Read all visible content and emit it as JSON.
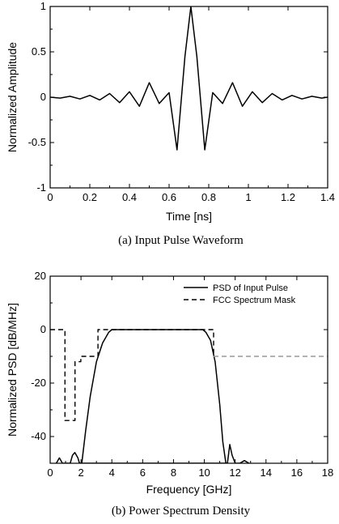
{
  "chart_data": [
    {
      "type": "line",
      "title": "",
      "caption": "(a) Input Pulse Waveform",
      "xlabel": "Time [ns]",
      "ylabel": "Normalized Amplitude",
      "xlim": [
        0,
        1.4
      ],
      "ylim": [
        -1,
        1
      ],
      "xticks": [
        "0",
        "0.2",
        "0.4",
        "0.6",
        "0.8",
        "1",
        "1.2",
        "1.4"
      ],
      "yticks": [
        "-1",
        "-0.5",
        "0",
        "0.5",
        "1"
      ],
      "grid": false,
      "series": [
        {
          "color": "#000000",
          "x": [
            0,
            0.05,
            0.1,
            0.15,
            0.2,
            0.25,
            0.3,
            0.35,
            0.4,
            0.45,
            0.5,
            0.55,
            0.6,
            0.64,
            0.68,
            0.71,
            0.74,
            0.78,
            0.82,
            0.87,
            0.92,
            0.97,
            1.02,
            1.07,
            1.12,
            1.17,
            1.22,
            1.27,
            1.32,
            1.37,
            1.4
          ],
          "y": [
            0,
            -0.01,
            0.01,
            -0.02,
            0.02,
            -0.03,
            0.04,
            -0.06,
            0.06,
            -0.1,
            0.16,
            -0.07,
            0.05,
            -0.58,
            0.45,
            1.0,
            0.45,
            -0.58,
            0.05,
            -0.07,
            0.16,
            -0.1,
            0.06,
            -0.06,
            0.04,
            -0.03,
            0.02,
            -0.02,
            0.01,
            -0.01,
            0
          ]
        }
      ]
    },
    {
      "type": "line",
      "title": "",
      "caption": "(b) Power Spectrum Density",
      "xlabel": "Frequency [GHz]",
      "ylabel": "Normalized PSD [dB/MHz]",
      "xlim": [
        0,
        18
      ],
      "ylim": [
        -50,
        20
      ],
      "xticks": [
        "0",
        "2",
        "4",
        "6",
        "8",
        "10",
        "12",
        "14",
        "16",
        "18"
      ],
      "yticks": [
        "-40",
        "-20",
        "0",
        "20"
      ],
      "grid": false,
      "legend_position": "top-right",
      "series": [
        {
          "name": "PSD of Input Pulse",
          "style": "solid",
          "color": "#000000",
          "x": [
            2.05,
            2.3,
            2.6,
            3.0,
            3.4,
            3.8,
            4.0,
            9.9,
            10.1,
            10.4,
            10.7,
            11.0,
            11.2,
            11.4,
            11.5
          ],
          "y": [
            -50,
            -38,
            -25,
            -12,
            -5,
            -1,
            0,
            0,
            -1,
            -4,
            -12,
            -28,
            -42,
            -50,
            -50
          ]
        },
        {
          "name": "FCC Spectrum Mask",
          "style": "dashed",
          "color": "#000000",
          "x": [
            0,
            0.96,
            0.96,
            1.61,
            1.61,
            1.99,
            1.99,
            3.1,
            3.1,
            10.6,
            10.6
          ],
          "y": [
            0,
            0,
            -34,
            -34,
            -12,
            -12,
            -10,
            -10,
            0,
            0,
            -10
          ]
        },
        {
          "style": "dashed",
          "color": "#999999",
          "x": [
            10.6,
            18
          ],
          "y": [
            -10,
            -10
          ]
        },
        {
          "style": "solid",
          "color": "#000000",
          "x": [
            0.4,
            0.6,
            0.8,
            1.1,
            1.3,
            1.45,
            1.6,
            1.8,
            1.9,
            2.0,
            11.5,
            11.65,
            11.8,
            12.0,
            12.3,
            12.6,
            12.9
          ],
          "y": [
            -50,
            -48,
            -50,
            -50,
            -50,
            -47,
            -46,
            -48,
            -50,
            -50,
            -50,
            -43,
            -47,
            -50,
            -50,
            -49,
            -50
          ]
        }
      ]
    }
  ]
}
